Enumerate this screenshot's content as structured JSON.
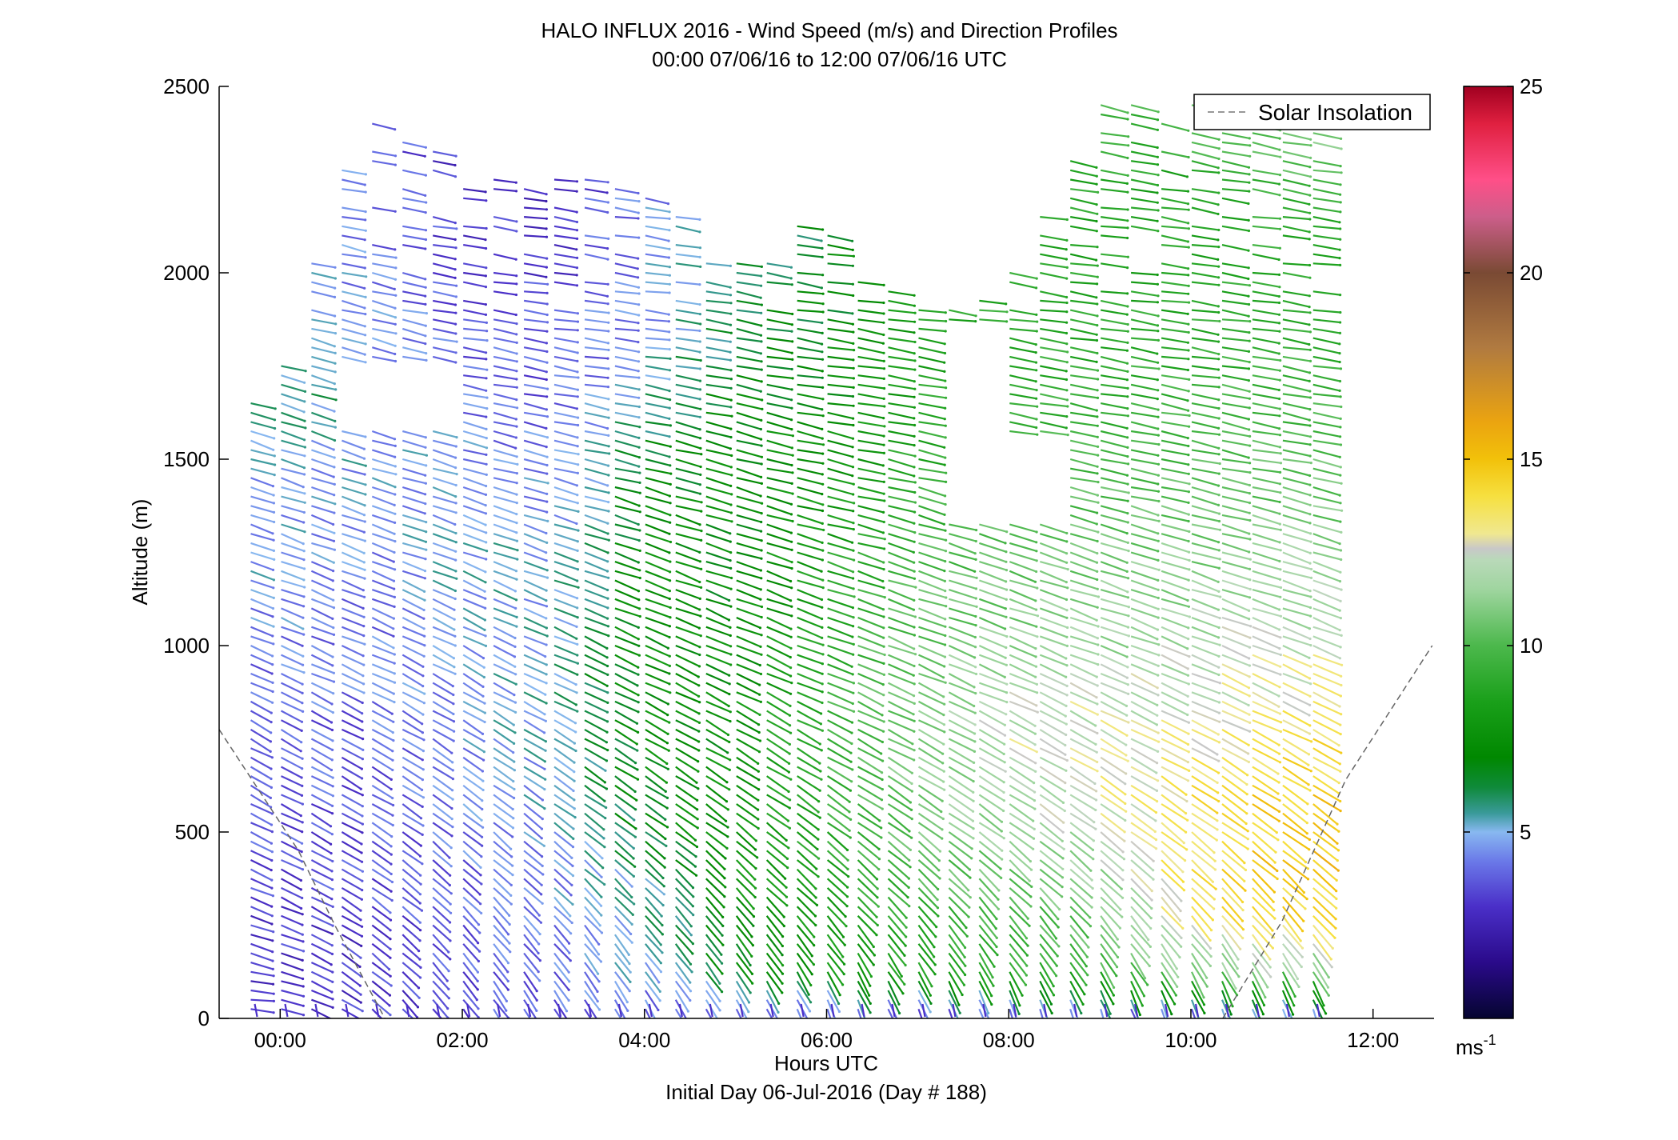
{
  "chart_data": {
    "type": "quiver",
    "title": "HALO INFLUX 2016 - Wind Speed (m/s) and Direction Profiles",
    "subtitle": "00:00 07/06/16 to 12:00 07/06/16  UTC",
    "xlabel": "Hours UTC",
    "xlabel2": "Initial Day 06-Jul-2016 (Day # 188)",
    "ylabel": "Altitude (m)",
    "xlim": [
      -0.67,
      12.67
    ],
    "ylim": [
      0,
      2500
    ],
    "x_ticks": [
      0,
      2,
      4,
      6,
      8,
      10,
      12
    ],
    "x_tick_labels": [
      "00:00",
      "02:00",
      "04:00",
      "06:00",
      "08:00",
      "10:00",
      "12:00"
    ],
    "y_ticks": [
      0,
      500,
      1000,
      1500,
      2000,
      2500
    ],
    "y_tick_labels": [
      "0",
      "500",
      "1000",
      "1500",
      "2000",
      "2500"
    ],
    "legend": {
      "entries": [
        "Solar Insolation"
      ],
      "placement": "top-right",
      "style": "dashed",
      "color": "#777777"
    },
    "solar_insolation": {
      "left": [
        [
          -0.67,
          775
        ],
        [
          0.2,
          450
        ],
        [
          0.6,
          250
        ],
        [
          1.15,
          0
        ]
      ],
      "right": [
        [
          10.35,
          0
        ],
        [
          11.0,
          260
        ],
        [
          11.7,
          640
        ],
        [
          12.65,
          1000
        ]
      ]
    },
    "colorbar": {
      "range": [
        0,
        25
      ],
      "ticks": [
        5,
        10,
        15,
        20,
        25
      ],
      "unit_label": "ms",
      "unit_exponent": "-1",
      "stops": [
        [
          0,
          "#050530"
        ],
        [
          1.5,
          "#2a0a8a"
        ],
        [
          3.0,
          "#4a2fc8"
        ],
        [
          4.2,
          "#6a78e8"
        ],
        [
          5.0,
          "#88b8f0"
        ],
        [
          5.5,
          "#3a9a9a"
        ],
        [
          6.2,
          "#0f8a3a"
        ],
        [
          7.0,
          "#008800"
        ],
        [
          8.5,
          "#1aa01a"
        ],
        [
          10.0,
          "#4cb84c"
        ],
        [
          11.5,
          "#9fd59f"
        ],
        [
          12.3,
          "#b9d9b9"
        ],
        [
          12.6,
          "#c8c8c8"
        ],
        [
          13.0,
          "#f0e890"
        ],
        [
          14.0,
          "#f6e040"
        ],
        [
          15.0,
          "#f2c10a"
        ],
        [
          16.0,
          "#eba410"
        ],
        [
          18.0,
          "#b07a40"
        ],
        [
          20.0,
          "#7a4a34"
        ],
        [
          21.5,
          "#cc5e8a"
        ],
        [
          22.5,
          "#ff4f88"
        ],
        [
          24.0,
          "#e02040"
        ],
        [
          25.0,
          "#a00020"
        ]
      ]
    },
    "profiles": [
      {
        "hour": 0.0,
        "speed": [
          3.0,
          3.0,
          3.2,
          3.5,
          3.6,
          3.8,
          4.0,
          4.5,
          4.8,
          5.0,
          6.0,
          5.0,
          4.6,
          4.5,
          4.5
        ],
        "dir_to": [
          -5,
          -15,
          -22,
          -25,
          -28,
          -28,
          -25,
          -22,
          -20,
          -18,
          -16,
          -14,
          -12,
          -12,
          -12
        ],
        "top": 1660
      },
      {
        "hour": 1.0,
        "speed": [
          3.0,
          3.2,
          3.4,
          3.5,
          3.6,
          3.8,
          4.0,
          4.2,
          4.5,
          4.8,
          5.2,
          4.6,
          4.2,
          4.2,
          4.5
        ],
        "dir_to": [
          -40,
          -38,
          -35,
          -33,
          -30,
          -28,
          -25,
          -22,
          -20,
          -18,
          -16,
          -14,
          -12,
          -12,
          -12
        ],
        "top": 2450
      },
      {
        "hour": 2.0,
        "speed": [
          3.5,
          3.6,
          3.8,
          4.0,
          4.3,
          4.6,
          4.8,
          5.0,
          5.0,
          4.6,
          4.0,
          3.5,
          3.2,
          3.0,
          3.2
        ],
        "dir_to": [
          -55,
          -50,
          -45,
          -42,
          -38,
          -34,
          -30,
          -25,
          -20,
          -16,
          -12,
          -10,
          -10,
          -12,
          -14
        ],
        "top": 2300
      },
      {
        "hour": 3.0,
        "speed": [
          3.8,
          4.0,
          4.3,
          4.6,
          4.9,
          5.0,
          5.1,
          5.0,
          4.8,
          4.3,
          3.8,
          3.4,
          3.0,
          3.0,
          3.2
        ],
        "dir_to": [
          -58,
          -52,
          -46,
          -40,
          -35,
          -30,
          -26,
          -22,
          -18,
          -14,
          -10,
          -8,
          -8,
          -10,
          -12
        ],
        "top": 2250
      },
      {
        "hour": 4.0,
        "speed": [
          3.5,
          4.8,
          5.2,
          6.0,
          7.0,
          7.2,
          7.5,
          7.5,
          7.3,
          6.5,
          5.0,
          4.6,
          4.3,
          4.2,
          4.3
        ],
        "dir_to": [
          -60,
          -55,
          -48,
          -40,
          -35,
          -30,
          -26,
          -22,
          -18,
          -14,
          -10,
          -8,
          -8,
          -10,
          -12
        ],
        "top": 2250
      },
      {
        "hour": 5.0,
        "speed": [
          3.5,
          7.0,
          7.4,
          7.6,
          7.8,
          7.5,
          7.4,
          7.2,
          7.2,
          7.2,
          6.8,
          6.0,
          5.5,
          5.0,
          5.0
        ],
        "dir_to": [
          -65,
          -55,
          -48,
          -40,
          -35,
          -30,
          -26,
          -22,
          -18,
          -15,
          -12,
          -10,
          -10,
          -12,
          -14
        ],
        "top": 2050
      },
      {
        "hour": 6.0,
        "speed": [
          3.0,
          7.8,
          8.2,
          8.8,
          9.2,
          9.4,
          9.2,
          8.8,
          8.2,
          7.6,
          7.2,
          6.8,
          6.5,
          6.5,
          6.5
        ],
        "dir_to": [
          -70,
          -58,
          -48,
          -40,
          -34,
          -28,
          -24,
          -20,
          -16,
          -12,
          -10,
          -8,
          -8,
          -10,
          -12
        ],
        "top": 2150
      },
      {
        "hour": 7.0,
        "speed": [
          3.0,
          8.5,
          9.2,
          10.2,
          10.8,
          11.2,
          11.0,
          10.2,
          9.6,
          9.0,
          8.5,
          8.5,
          9.0,
          9.5,
          11.0
        ],
        "dir_to": [
          -72,
          -58,
          -48,
          -40,
          -34,
          -28,
          -24,
          -20,
          -16,
          -12,
          -10,
          -8,
          -8,
          -10,
          -12
        ],
        "top": 1900
      },
      {
        "hour": 8.0,
        "speed": [
          3.0,
          9.0,
          10.0,
          11.0,
          12.0,
          12.2,
          11.8,
          11.0,
          10.2,
          9.5,
          9.2,
          9.0,
          9.2,
          9.5,
          10.5
        ],
        "dir_to": [
          -72,
          -58,
          -48,
          -40,
          -34,
          -28,
          -24,
          -20,
          -16,
          -12,
          -10,
          -8,
          -8,
          -10,
          -12
        ],
        "top": 1950
      },
      {
        "hour": 9.0,
        "speed": [
          3.0,
          9.5,
          10.5,
          11.8,
          12.6,
          12.8,
          12.0,
          11.2,
          10.5,
          9.8,
          9.2,
          8.8,
          8.6,
          8.8,
          9.5
        ],
        "dir_to": [
          -72,
          -58,
          -48,
          -40,
          -34,
          -28,
          -24,
          -20,
          -16,
          -12,
          -10,
          -8,
          -8,
          -10,
          -12
        ],
        "top": 2450
      },
      {
        "hour": 10.0,
        "speed": [
          3.0,
          11.0,
          13.4,
          13.8,
          13.6,
          13.0,
          12.4,
          11.6,
          10.8,
          10.0,
          9.4,
          9.0,
          8.8,
          9.0,
          11.0
        ],
        "dir_to": [
          -72,
          -58,
          -48,
          -40,
          -34,
          -28,
          -24,
          -20,
          -16,
          -12,
          -10,
          -8,
          -8,
          -10,
          -12
        ],
        "top": 2450
      },
      {
        "hour": 11.0,
        "speed": [
          3.0,
          11.5,
          14.0,
          14.8,
          14.6,
          14.0,
          13.0,
          12.0,
          11.0,
          10.2,
          9.5,
          9.2,
          9.0,
          10.0,
          12.0
        ],
        "dir_to": [
          -72,
          -58,
          -48,
          -40,
          -34,
          -28,
          -24,
          -20,
          -16,
          -12,
          -10,
          -8,
          -8,
          -10,
          -12
        ],
        "top": 2490
      },
      {
        "hour": 11.67,
        "speed": [
          3.0,
          11.0,
          14.4,
          15.0,
          14.6,
          13.8,
          12.8,
          11.8,
          11.0,
          10.2,
          9.6,
          9.2,
          9.0,
          10.0,
          12.5
        ],
        "dir_to": [
          -72,
          -58,
          -48,
          -40,
          -34,
          -28,
          -24,
          -20,
          -16,
          -12,
          -10,
          -8,
          -8,
          -10,
          -12
        ],
        "top": 2490
      }
    ],
    "profile_altitudes": [
      0,
      150,
      300,
      450,
      600,
      750,
      900,
      1100,
      1300,
      1500,
      1700,
      1900,
      2100,
      2300,
      2500
    ],
    "data_gaps": [
      {
        "hours": [
          0.5,
          1.8
        ],
        "altitude": [
          1580,
          1760
        ]
      },
      {
        "hours": [
          6.3,
          7.4
        ],
        "altitude": [
          2000,
          2500
        ]
      },
      {
        "hours": [
          7.35,
          7.85
        ],
        "altitude": [
          1350,
          1850
        ]
      },
      {
        "hours": [
          7.85,
          8.7
        ],
        "altitude": [
          1350,
          1550
        ]
      },
      {
        "hours": [
          4.7,
          5.6
        ],
        "altitude": [
          2050,
          2500
        ]
      }
    ]
  }
}
